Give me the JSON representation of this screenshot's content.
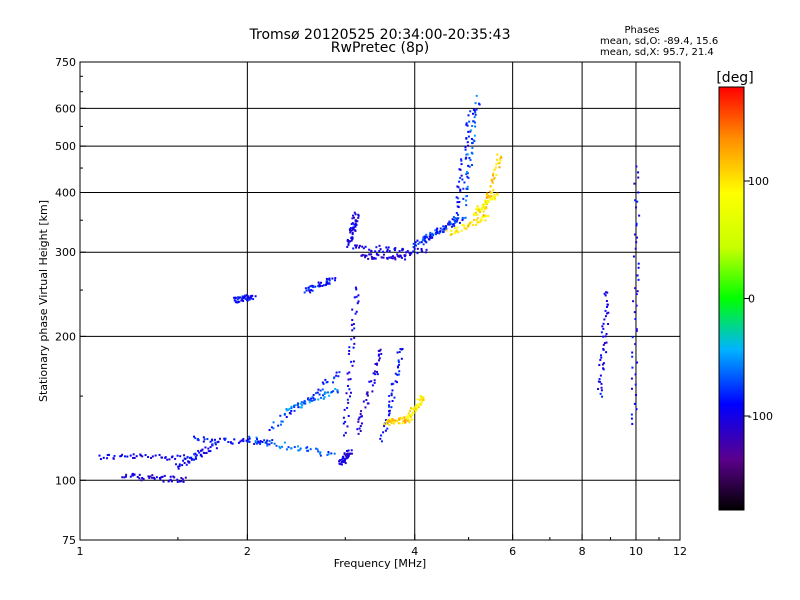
{
  "chart_data": {
    "type": "scatter",
    "title": "Tromsø 20120525 20:34:00-20:35:43",
    "subtitle": "RwPretec (8p)",
    "xlabel": "Frequency [MHz]",
    "ylabel": "Stationary phase Virtual Height [km]",
    "x_scale": "log",
    "y_scale": "log",
    "xlim": [
      1,
      12
    ],
    "ylim": [
      75,
      750
    ],
    "x_ticks": [
      "1",
      "2",
      "4",
      "6",
      "8",
      "10",
      "12"
    ],
    "x_tick_values": [
      1,
      2,
      4,
      6,
      8,
      10,
      12
    ],
    "y_ticks": [
      "75",
      "100",
      "200",
      "300",
      "400",
      "500",
      "600",
      "750"
    ],
    "y_tick_values": [
      75,
      100,
      200,
      300,
      400,
      500,
      600,
      750
    ],
    "grid_x": [
      2,
      4,
      6,
      8,
      10
    ],
    "grid_y": [
      100,
      200,
      300,
      400,
      500,
      600
    ],
    "phases_header": "Phases",
    "phases_line1": "mean, sd,O: -89.4, 15.6",
    "phases_line2": "mean, sd,X:  95.7, 21.4",
    "colorbar": {
      "label": "[deg]",
      "range": [
        -180,
        180
      ],
      "ticks": [
        "100",
        "0",
        "-100"
      ],
      "tick_values": [
        100,
        0,
        -100
      ]
    },
    "traces": [
      {
        "f": [
          1.08,
          1.6
        ],
        "h": [
          112,
          112
        ],
        "phase": -100
      },
      {
        "f": [
          1.2,
          1.55
        ],
        "h": [
          102,
          100
        ],
        "phase": -110
      },
      {
        "f": [
          1.5,
          1.75
        ],
        "h": [
          107,
          118
        ],
        "phase": -95
      },
      {
        "f": [
          1.6,
          2.2
        ],
        "h": [
          122,
          120
        ],
        "phase": -90
      },
      {
        "f": [
          2.0,
          2.85
        ],
        "h": [
          122,
          113
        ],
        "phase": -70
      },
      {
        "f": [
          2.2,
          2.95
        ],
        "h": [
          128,
          168
        ],
        "phase": -80
      },
      {
        "f": [
          2.35,
          2.9
        ],
        "h": [
          140,
          155
        ],
        "phase": -60
      },
      {
        "f": [
          2.95,
          3.05
        ],
        "h": [
          108,
          115
        ],
        "phase": -105
      },
      {
        "f": [
          3.0,
          3.15
        ],
        "h": [
          125,
          255
        ],
        "phase": -100
      },
      {
        "f": [
          3.15,
          3.5
        ],
        "h": [
          125,
          190
        ],
        "phase": -110
      },
      {
        "f": [
          3.5,
          3.8
        ],
        "h": [
          122,
          190
        ],
        "phase": -90
      },
      {
        "f": [
          3.55,
          3.9
        ],
        "h": [
          132,
          134
        ],
        "phase": 110
      },
      {
        "f": [
          3.9,
          4.15
        ],
        "h": [
          135,
          150
        ],
        "phase": 95
      },
      {
        "f": [
          3.05,
          4.2
        ],
        "h": [
          308,
          300
        ],
        "phase": -100
      },
      {
        "f": [
          3.2,
          3.9
        ],
        "h": [
          295,
          292
        ],
        "phase": -110
      },
      {
        "f": [
          3.05,
          3.15
        ],
        "h": [
          315,
          360
        ],
        "phase": -105
      },
      {
        "f": [
          4.0,
          4.7
        ],
        "h": [
          310,
          345
        ],
        "phase": -90
      },
      {
        "f": [
          4.1,
          4.9
        ],
        "h": [
          318,
          355
        ],
        "phase": -80
      },
      {
        "f": [
          4.7,
          5.05
        ],
        "h": [
          345,
          600
        ],
        "phase": -85
      },
      {
        "f": [
          4.9,
          5.2
        ],
        "h": [
          380,
          630
        ],
        "phase": -70
      },
      {
        "f": [
          4.6,
          5.4
        ],
        "h": [
          330,
          355
        ],
        "phase": 100
      },
      {
        "f": [
          5.3,
          5.7
        ],
        "h": [
          355,
          480
        ],
        "phase": 110
      },
      {
        "f": [
          5.1,
          5.6
        ],
        "h": [
          360,
          395
        ],
        "phase": 95
      },
      {
        "f": [
          1.9,
          2.05
        ],
        "h": [
          238,
          242
        ],
        "phase": -95
      },
      {
        "f": [
          2.55,
          2.85
        ],
        "h": [
          250,
          262
        ],
        "phase": -90
      },
      {
        "f": [
          9.9,
          10.05
        ],
        "h": [
          130,
          450
        ],
        "phase": -100
      },
      {
        "f": [
          8.6,
          8.9
        ],
        "h": [
          150,
          250
        ],
        "phase": -100
      }
    ]
  }
}
